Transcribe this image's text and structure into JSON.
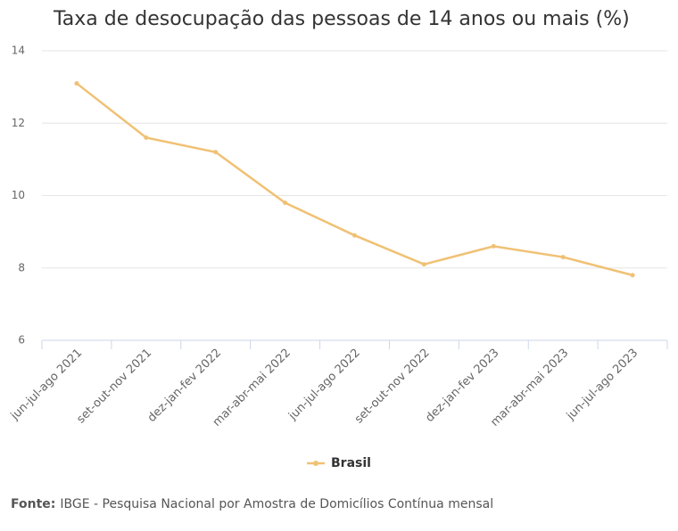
{
  "chart_data": {
    "type": "line",
    "title": "Taxa de desocupação das pessoas de 14 anos ou mais (%)",
    "categories": [
      "jun-jul-ago 2021",
      "set-out-nov 2021",
      "dez-jan-fev 2022",
      "mar-abr-mai 2022",
      "jun-jul-ago 2022",
      "set-out-nov 2022",
      "dez-jan-fev 2023",
      "mar-abr-mai 2023",
      "jun-jul-ago 2023"
    ],
    "series": [
      {
        "name": "Brasil",
        "color": "#f0c174",
        "values": [
          13.1,
          11.6,
          11.2,
          9.8,
          8.9,
          8.1,
          8.6,
          8.3,
          7.8
        ]
      }
    ],
    "ylim": [
      6,
      14
    ],
    "yticks": [
      6,
      8,
      10,
      12,
      14
    ],
    "grid": true,
    "legend": "bottom",
    "footer": {
      "label": "Fonte:",
      "text": "IBGE - Pesquisa Nacional por Amostra de Domicílios Contínua mensal"
    }
  }
}
